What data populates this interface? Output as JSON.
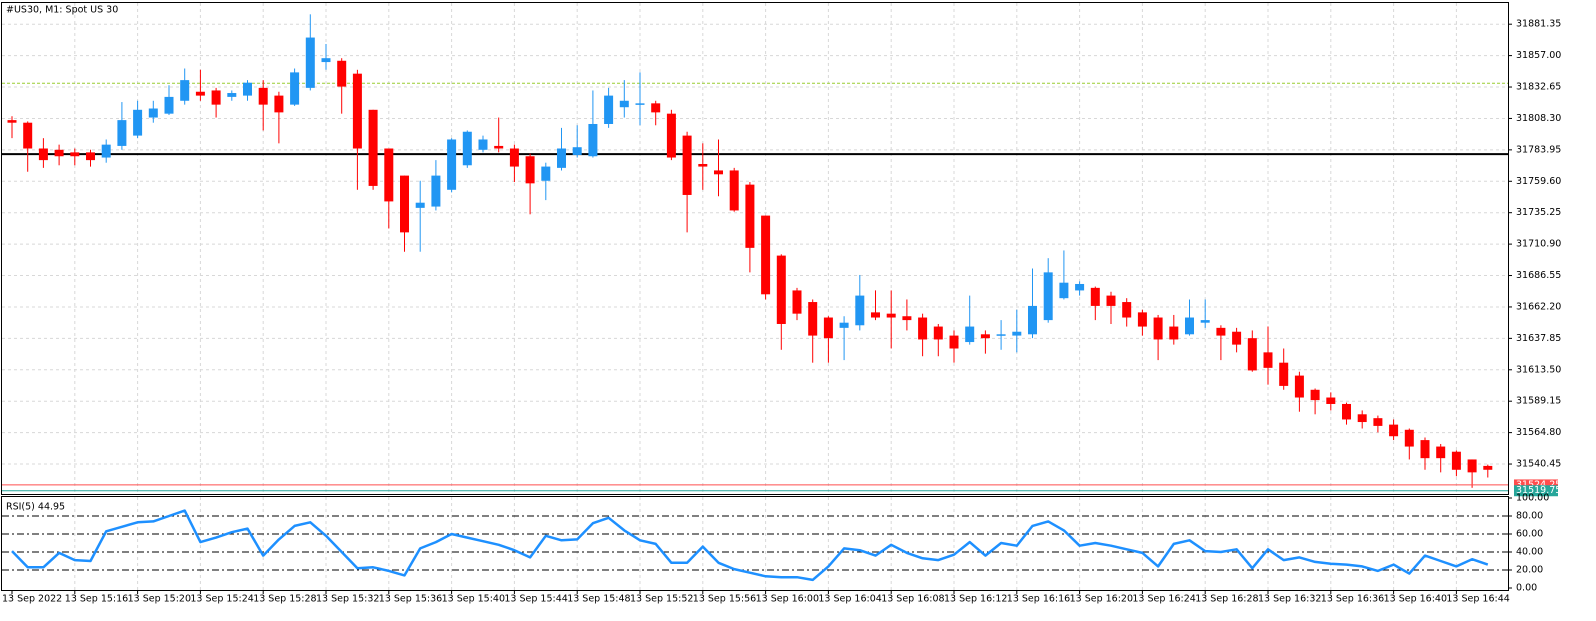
{
  "chart_data": [
    {
      "type": "candlestick",
      "title": "#US30, M1:  Spot US 30",
      "categories": [
        "13 Sep 2022",
        null,
        null,
        null,
        "13 Sep 15:16",
        null,
        null,
        null,
        "13 Sep 15:20",
        null,
        null,
        null,
        "13 Sep 15:24",
        null,
        null,
        null,
        "13 Sep 15:28",
        null,
        null,
        null,
        "13 Sep 15:32",
        null,
        null,
        null,
        "13 Sep 15:36",
        null,
        null,
        null,
        "13 Sep 15:40",
        null,
        null,
        null,
        "13 Sep 15:44",
        null,
        null,
        null,
        "13 Sep 15:48",
        null,
        null,
        null,
        "13 Sep 15:52",
        null,
        null,
        null,
        "13 Sep 15:56",
        null,
        null,
        null,
        "13 Sep 16:00",
        null,
        null,
        null,
        "13 Sep 16:04",
        null,
        null,
        null,
        "13 Sep 16:08",
        null,
        null,
        null,
        "13 Sep 16:12",
        null,
        null,
        null,
        "13 Sep 16:16",
        null,
        null,
        null,
        "13 Sep 16:20",
        null,
        null,
        null,
        "13 Sep 16:24",
        null,
        null,
        null,
        "13 Sep 16:28",
        null,
        null,
        null,
        "13 Sep 16:32",
        null,
        null,
        null,
        "13 Sep 16:36",
        null,
        null,
        null,
        "13 Sep 16:40",
        null,
        null,
        null,
        "13 Sep 16:44",
        null,
        null
      ],
      "open": [
        31807,
        31805,
        31785,
        31784,
        31782,
        31782,
        31778,
        31787,
        31795,
        31809,
        31812,
        31822,
        31829,
        31830,
        31825,
        31826,
        31832,
        31826,
        31819,
        31832,
        31852,
        31853,
        31843,
        31815,
        31785,
        31764,
        31739,
        31740,
        31753,
        31772,
        31784,
        31787,
        31785,
        31779,
        31760,
        31770,
        31780,
        31779,
        31804,
        31817,
        31819,
        31820,
        31812,
        31795,
        31773,
        31768,
        31768,
        31757,
        31733,
        31702,
        31675,
        31666,
        31654,
        31646,
        31648,
        31658,
        31657,
        31655,
        31654,
        31647,
        31640,
        31635,
        31641,
        31640,
        31640,
        31641,
        31652,
        31669,
        31675,
        31677,
        31671,
        31666,
        31658,
        31654,
        31647,
        31641,
        31650,
        31646,
        31643,
        31638,
        31627,
        31619,
        31609,
        31598,
        31592,
        31587,
        31579,
        31576,
        31571,
        31567,
        31559,
        31554,
        31550,
        31544,
        31539
      ],
      "high": [
        31810,
        31806,
        31793,
        31788,
        31785,
        31784,
        31792,
        31821,
        31822,
        31822,
        31834,
        31847,
        31846,
        31832,
        31830,
        31838,
        31838,
        31829,
        31847,
        31889,
        31866,
        31855,
        31846,
        31815,
        31785,
        31764,
        31760,
        31776,
        31793,
        31799,
        31795,
        31809,
        31788,
        31781,
        31774,
        31801,
        31803,
        31830,
        31832,
        31838,
        31844,
        31822,
        31815,
        31798,
        31789,
        31792,
        31770,
        31759,
        31733,
        31703,
        31677,
        31668,
        31655,
        31655,
        31687,
        31675,
        31675,
        31668,
        31657,
        31649,
        31644,
        31671,
        31644,
        31652,
        31660,
        31692,
        31700,
        31706,
        31682,
        31678,
        31674,
        31669,
        31660,
        31656,
        31656,
        31668,
        31668,
        31648,
        31646,
        31644,
        31647,
        31630,
        31612,
        31599,
        31596,
        31588,
        31582,
        31578,
        31575,
        31568,
        31561,
        31556,
        31551,
        31544,
        31540
      ],
      "low": [
        31793,
        31767,
        31770,
        31772,
        31772,
        31771,
        31774,
        31784,
        31793,
        31805,
        31811,
        31819,
        31822,
        31809,
        31822,
        31822,
        31799,
        31789,
        31818,
        31830,
        31846,
        31812,
        31753,
        31753,
        31723,
        31705,
        31705,
        31737,
        31751,
        31770,
        31782,
        31782,
        31759,
        31734,
        31745,
        31768,
        31778,
        31778,
        31801,
        31809,
        31803,
        31803,
        31776,
        31720,
        31753,
        31748,
        31736,
        31689,
        31668,
        31629,
        31652,
        31619,
        31619,
        31621,
        31644,
        31652,
        31630,
        31644,
        31624,
        31624,
        31619,
        31633,
        31626,
        31629,
        31627,
        31638,
        31650,
        31668,
        31671,
        31652,
        31649,
        31647,
        31640,
        31621,
        31633,
        31640,
        31646,
        31621,
        31627,
        31612,
        31602,
        31598,
        31581,
        31579,
        31582,
        31571,
        31568,
        31565,
        31559,
        31544,
        31536,
        31534,
        31531,
        31522,
        31530
      ],
      "close": [
        31805,
        31785,
        31776,
        31779,
        31779,
        31776,
        31788,
        31807,
        31815,
        31816,
        31825,
        31838,
        31826,
        31819,
        31828,
        31836,
        31819,
        31813,
        31844,
        31871,
        31855,
        31833,
        31785,
        31756,
        31744,
        31720,
        31743,
        31764,
        31792,
        31798,
        31792,
        31785,
        31771,
        31758,
        31771,
        31785,
        31786,
        31804,
        31826,
        31822,
        31820,
        31813,
        31778,
        31749,
        31771,
        31765,
        31737,
        31708,
        31672,
        31649,
        31657,
        31640,
        31638,
        31650,
        31671,
        31654,
        31654,
        31652,
        31637,
        31637,
        31630,
        31647,
        31638,
        31641,
        31643,
        31663,
        31689,
        31681,
        31680,
        31663,
        31663,
        31654,
        31647,
        31637,
        31637,
        31654,
        31652,
        31640,
        31633,
        31613,
        31615,
        31601,
        31592,
        31590,
        31587,
        31575,
        31573,
        31570,
        31562,
        31554,
        31545,
        31545,
        31536,
        31534,
        31536
      ],
      "up_color": "#2196f3",
      "down_color": "#ff0000",
      "ylim": [
        31518,
        31897
      ],
      "yticks": [
        31881.35,
        {
          "value": 31857,
          "label": "31857.00"
        },
        31832.65,
        {
          "value": 31808.3,
          "label": "31808.30"
        },
        31783.95,
        {
          "value": 31759.6,
          "label": "31759.60"
        },
        31735.25,
        {
          "value": 31710.9,
          "label": "31710.90"
        },
        31686.55,
        {
          "value": 31662.2,
          "label": "31662.20"
        },
        31637.85,
        {
          "value": 31613.5,
          "label": "31613.50"
        },
        31589.15,
        {
          "value": 31564.8,
          "label": "31564.80"
        },
        31540.45
      ],
      "grid": true,
      "hlines": [
        {
          "value": 31835.6,
          "color": "#9acd32",
          "style": "dashed"
        },
        {
          "value": 31780.6,
          "color": "#000000",
          "style": "solid"
        }
      ],
      "price_tags": [
        {
          "value": 31524.25,
          "color": "#ff4d4d"
        },
        {
          "value": 31519.75,
          "color": "#26a69a"
        }
      ]
    },
    {
      "type": "line",
      "title": "RSI(5) 44.95",
      "values": [
        41,
        23,
        23,
        39,
        31,
        30,
        63,
        68,
        73,
        74,
        80,
        86,
        51,
        56,
        62,
        66,
        36,
        54,
        69,
        73,
        58,
        40,
        22,
        23,
        19,
        14,
        44,
        51,
        60,
        56,
        52,
        48,
        42,
        34,
        58,
        53,
        54,
        72,
        78,
        64,
        53,
        49,
        28,
        28,
        46,
        28,
        21,
        17,
        13,
        12,
        12,
        9,
        24,
        44,
        42,
        36,
        48,
        39,
        33,
        31,
        37,
        51,
        36,
        50,
        47,
        69,
        74,
        64,
        47,
        50,
        47,
        43,
        39,
        24,
        49,
        53,
        41,
        40,
        43,
        22,
        43,
        31,
        34,
        29,
        27,
        26,
        24,
        19,
        26,
        16,
        36,
        30,
        24,
        32,
        26
      ],
      "color": "#1e90ff",
      "ylim": [
        0,
        100
      ],
      "yticks": [
        {
          "value": 100,
          "label": "100.00"
        },
        {
          "value": 80,
          "label": "80.00"
        },
        {
          "value": 60,
          "label": "60.00"
        },
        {
          "value": 40,
          "label": "40.00"
        },
        {
          "value": 20,
          "label": "20.00"
        },
        {
          "value": 0,
          "label": "0.00"
        }
      ]
    }
  ]
}
